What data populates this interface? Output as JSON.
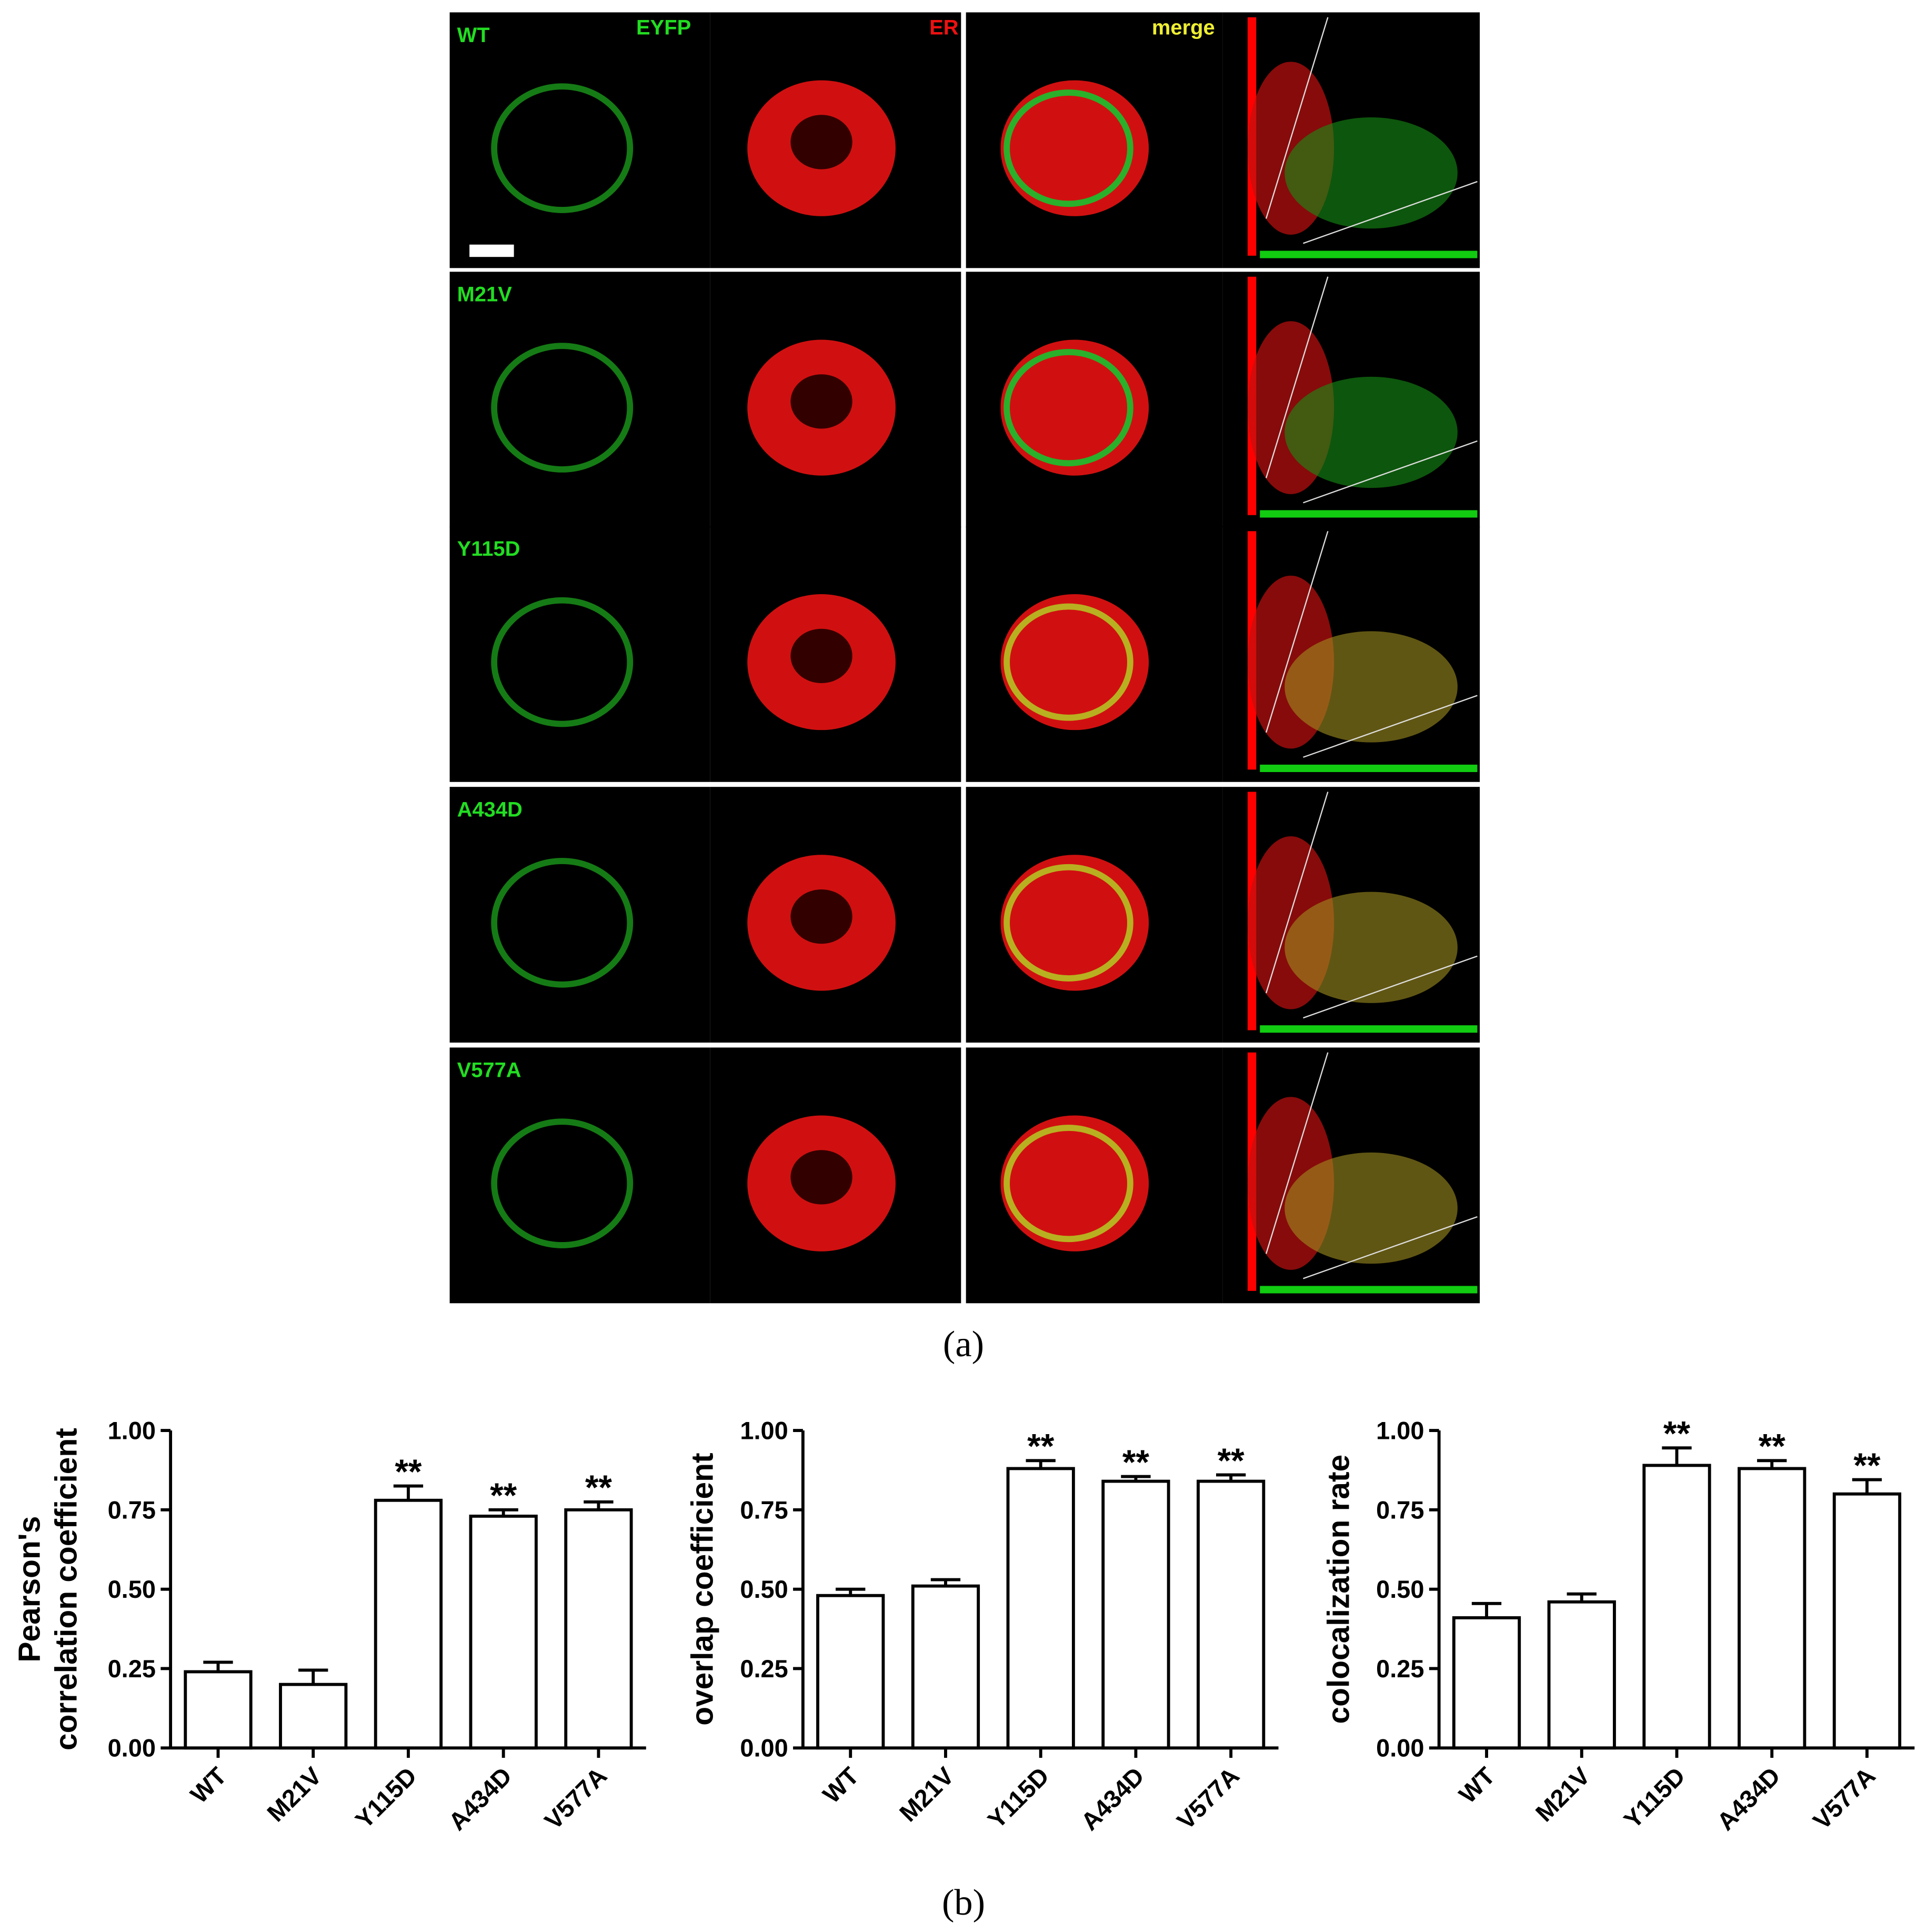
{
  "panel_a": {
    "channel_labels": [
      "EYFP",
      "ER",
      "merge"
    ],
    "row_labels": [
      "WT",
      "M21V",
      "Y115D",
      "A434D",
      "V577A"
    ],
    "caption": "(a)"
  },
  "panel_b_caption": "(b)",
  "chart_data": [
    {
      "type": "bar",
      "ylabel": [
        "Pearson's",
        "correlation coefficient"
      ],
      "categories": [
        "WT",
        "M21V",
        "Y115D",
        "A434D",
        "V577A"
      ],
      "values": [
        0.24,
        0.2,
        0.78,
        0.73,
        0.75
      ],
      "errors": [
        0.03,
        0.045,
        0.045,
        0.02,
        0.025
      ],
      "significance": [
        null,
        null,
        "**",
        "**",
        "**"
      ],
      "color": "#ffffff",
      "ylim": [
        0,
        1
      ],
      "yticks": [
        {
          "value": 0,
          "label": "0.00"
        },
        {
          "value": 0.25,
          "label": "0.25"
        },
        {
          "value": 0.5,
          "label": "0.50"
        },
        {
          "value": 0.75,
          "label": "0.75"
        },
        {
          "value": 1,
          "label": "1.00"
        }
      ]
    },
    {
      "type": "bar",
      "ylabel": [
        "overlap coefficient"
      ],
      "categories": [
        "WT",
        "M21V",
        "Y115D",
        "A434D",
        "V577A"
      ],
      "values": [
        0.48,
        0.51,
        0.88,
        0.84,
        0.84
      ],
      "errors": [
        0.02,
        0.02,
        0.025,
        0.015,
        0.02
      ],
      "significance": [
        null,
        null,
        "**",
        "**",
        "**"
      ],
      "color": "#ffffff",
      "ylim": [
        0,
        1
      ],
      "yticks": [
        {
          "value": 0,
          "label": "0.00"
        },
        {
          "value": 0.25,
          "label": "0.25"
        },
        {
          "value": 0.5,
          "label": "0.50"
        },
        {
          "value": 0.75,
          "label": "0.75"
        },
        {
          "value": 1,
          "label": "1.00"
        }
      ]
    },
    {
      "type": "bar",
      "ylabel": [
        "colocalization rate"
      ],
      "categories": [
        "WT",
        "M21V",
        "Y115D",
        "A434D",
        "V577A"
      ],
      "values": [
        0.41,
        0.46,
        0.89,
        0.88,
        0.8
      ],
      "errors": [
        0.045,
        0.025,
        0.055,
        0.025,
        0.045
      ],
      "significance": [
        null,
        null,
        "**",
        "**",
        "**"
      ],
      "color": "#ffffff",
      "ylim": [
        0,
        1
      ],
      "yticks": [
        {
          "value": 0,
          "label": "0.00"
        },
        {
          "value": 0.25,
          "label": "0.25"
        },
        {
          "value": 0.5,
          "label": "0.50"
        },
        {
          "value": 0.75,
          "label": "0.75"
        },
        {
          "value": 1,
          "label": "1.00"
        }
      ]
    }
  ]
}
